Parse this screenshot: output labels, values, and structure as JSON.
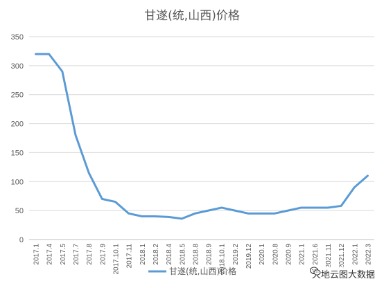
{
  "chart_data": {
    "type": "line",
    "title": "甘遂(统,山西)价格",
    "xlabel": "",
    "ylabel": "",
    "ylim": [
      0,
      350
    ],
    "yticks": [
      0,
      50,
      100,
      150,
      200,
      250,
      300,
      350
    ],
    "grid": true,
    "legend": "bottom",
    "series": [
      {
        "name": "甘遂(统,山西)价格",
        "color": "#5B9BD5",
        "x": [
          "2017.1",
          "2017.4",
          "2017.5",
          "2017.7",
          "2017.8",
          "2017.9",
          "2017.10.1",
          "2017.11",
          "2018.1",
          "2018.2",
          "2018.4",
          "2018.5",
          "2018.8",
          "2018.9",
          "2018.10.1",
          "2019.2",
          "2019.12",
          "2020.1",
          "2020.8",
          "2020.9",
          "2021.1",
          "2021.6",
          "2021.11",
          "2021.12",
          "2022.1",
          "2022.3"
        ],
        "values": [
          320,
          320,
          290,
          180,
          115,
          70,
          65,
          45,
          40,
          40,
          39,
          36,
          45,
          50,
          55,
          50,
          45,
          45,
          45,
          50,
          55,
          55,
          55,
          58,
          90,
          110
        ]
      }
    ],
    "xtick_labels": [
      "2017.1",
      "2017.4",
      "2017.5",
      "2017.7",
      "2017.8",
      "2017.9",
      "2017.10.1",
      "2017.11",
      "2018.1",
      "2018.2",
      "2018.4",
      "2018.5",
      "2018.8",
      "2018.9",
      "2018.10.1",
      "2019.2",
      "2019.12",
      "2020.1",
      "2020.8",
      "2020.9",
      "2021.1",
      "2021.6",
      "2021.11",
      "2021.12",
      "2022.1",
      "2022.3"
    ]
  },
  "watermark": {
    "text": "天地云图大数据",
    "icon": "wechat-icon"
  }
}
